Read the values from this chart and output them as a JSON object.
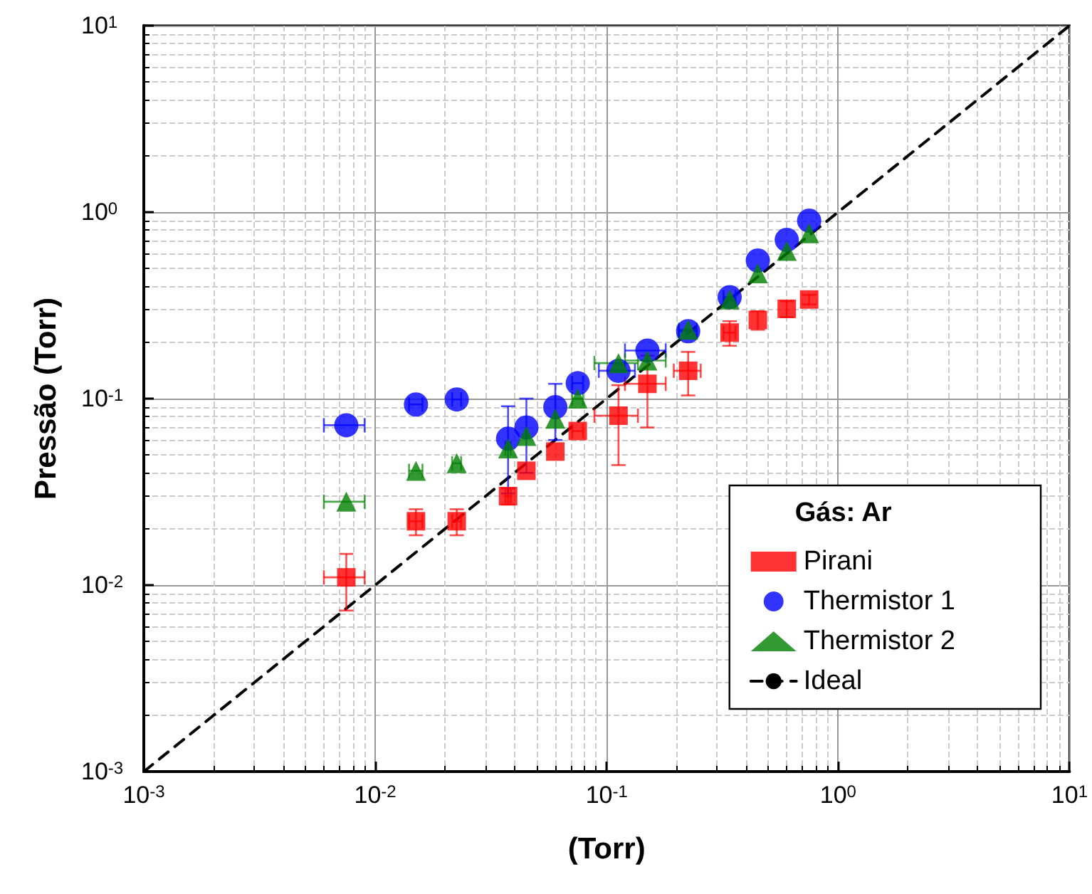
{
  "chart_data": {
    "type": "scatter",
    "xlabel": "(Torr)",
    "ylabel": "Pressão (Torr)",
    "legend_title": "Gás: Ar",
    "log": "xy",
    "grid": true,
    "legend": "bottom right",
    "xlim": [
      0.001,
      10
    ],
    "ylim": [
      0.001,
      10
    ],
    "xticks": [
      {
        "value": 0.001,
        "label": "10$^{-3}$"
      },
      {
        "value": 0.01,
        "label": "10$^{-2}$"
      },
      {
        "value": 0.1,
        "label": "10$^{-1}$"
      },
      {
        "value": 1,
        "label": "10$^{0}$"
      },
      {
        "value": 10,
        "label": "10$^{1}$"
      }
    ],
    "yticks": [
      {
        "value": 0.001,
        "label": "10$^{-3}$"
      },
      {
        "value": 0.01,
        "label": "10$^{-2}$"
      },
      {
        "value": 0.1,
        "label": "10$^{-1}$"
      },
      {
        "value": 1,
        "label": "10$^{0}$"
      },
      {
        "value": 10,
        "label": "10$^{1}$"
      }
    ],
    "x": [
      0.0075,
      0.015,
      0.0225,
      0.0375,
      0.045,
      0.06,
      0.075,
      0.1125,
      0.15,
      0.225,
      0.34,
      0.45,
      0.6,
      0.75
    ],
    "series": [
      {
        "name": "Pirani",
        "color": "#ff0000",
        "marker": "square",
        "values": [
          0.011,
          0.022,
          0.022,
          0.03,
          0.041,
          0.052,
          0.067,
          0.081,
          0.12,
          0.141,
          0.226,
          0.264,
          0.303,
          0.34
        ],
        "errors": [
          0.0037,
          0.0035,
          0.0035,
          0.003,
          null,
          null,
          null,
          0.037,
          0.05,
          0.037,
          0.034,
          0.03,
          0.03,
          0.02
        ],
        "xerrors": [
          0.0015,
          0.001,
          0.001,
          0.001,
          null,
          null,
          0.004,
          0.024,
          0.03,
          0.03,
          0.02,
          null,
          null,
          null
        ]
      },
      {
        "name": "Thermistor 1",
        "color": "#0000ff",
        "marker": "circle",
        "values": [
          0.072,
          0.093,
          0.099,
          0.061,
          0.07,
          0.09,
          0.121,
          0.141,
          0.181,
          0.23,
          0.35,
          0.55,
          0.71,
          0.9
        ],
        "errors": [
          null,
          null,
          null,
          0.03,
          0.03,
          0.03,
          null,
          null,
          null,
          null,
          null,
          null,
          null,
          null
        ],
        "xerrors": [
          0.0015,
          0.001,
          0.001,
          null,
          null,
          null,
          0.004,
          0.02,
          0.03,
          0.02,
          0.02,
          null,
          null,
          null
        ]
      },
      {
        "name": "Thermistor 2",
        "color": "#008000",
        "marker": "triangle",
        "values": [
          0.028,
          0.041,
          0.045,
          0.054,
          0.063,
          0.078,
          0.1,
          0.155,
          0.16,
          0.234,
          0.34,
          0.47,
          0.62,
          0.77
        ],
        "errors": [
          null,
          null,
          null,
          null,
          null,
          null,
          null,
          null,
          null,
          null,
          null,
          null,
          null,
          null
        ],
        "xerrors": [
          0.0015,
          0.001,
          0.001,
          0.001,
          null,
          null,
          0.004,
          0.024,
          0.03,
          0.02,
          0.02,
          null,
          null,
          null
        ]
      },
      {
        "name": "Ideal",
        "type": "line",
        "color": "#000000",
        "marker": "none",
        "line_style": "dashed",
        "x": [
          0.001,
          10
        ],
        "values": [
          0.001,
          10
        ]
      }
    ]
  }
}
